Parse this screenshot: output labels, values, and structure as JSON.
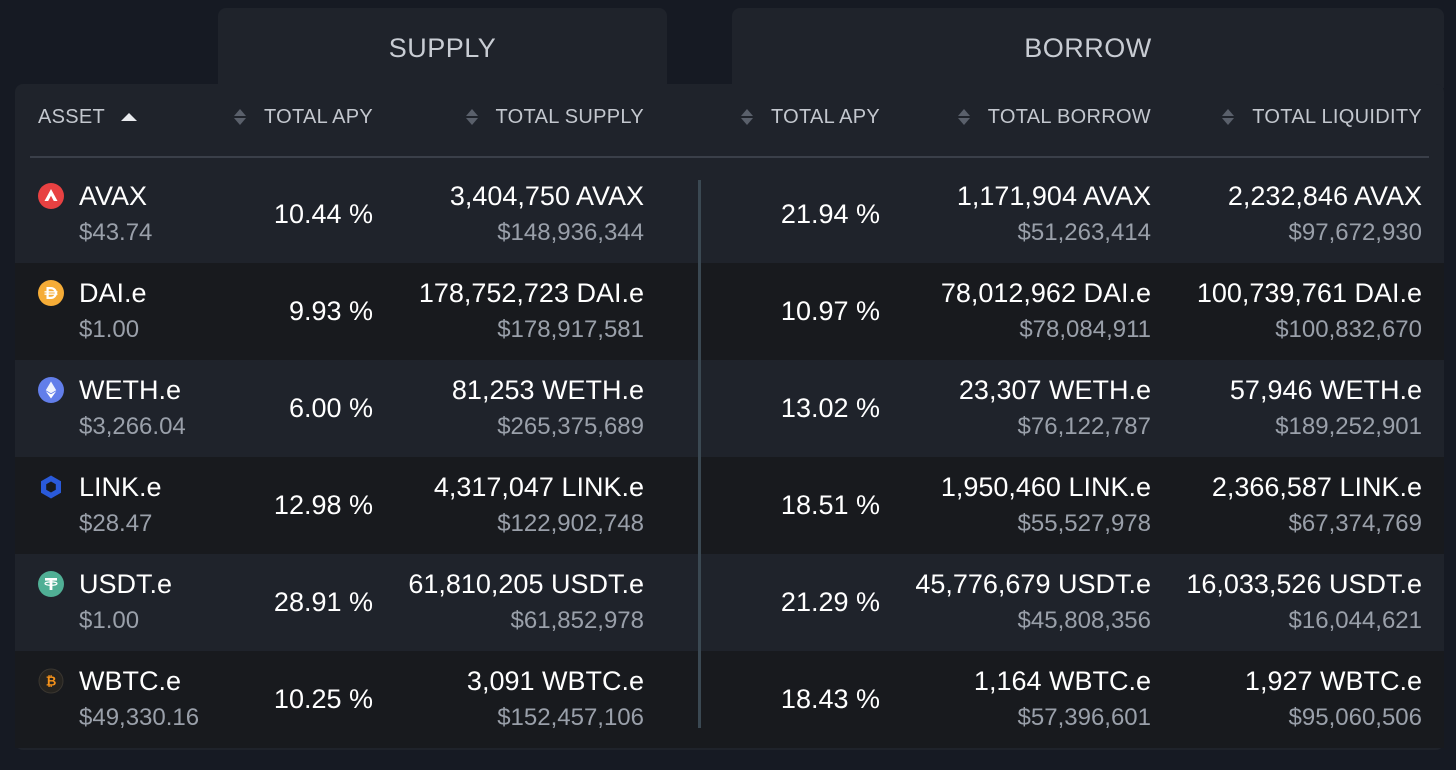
{
  "tabs": {
    "supply": "SUPPLY",
    "borrow": "BORROW"
  },
  "header": {
    "asset": "ASSET",
    "supply_apy": "TOTAL APY",
    "total_supply": "TOTAL SUPPLY",
    "borrow_apy": "TOTAL APY",
    "total_borrow": "TOTAL BORROW",
    "total_liquidity": "TOTAL LIQUIDITY"
  },
  "rows": [
    {
      "icon": "avax-icon",
      "name": "AVAX",
      "price": "$43.74",
      "supply_apy": "10.44 %",
      "supply_amount": "3,404,750 AVAX",
      "supply_usd": "$148,936,344",
      "borrow_apy": "21.94 %",
      "borrow_amount": "1,171,904 AVAX",
      "borrow_usd": "$51,263,414",
      "liquidity_amount": "2,232,846 AVAX",
      "liquidity_usd": "$97,672,930"
    },
    {
      "icon": "dai-icon",
      "name": "DAI.e",
      "price": "$1.00",
      "supply_apy": "9.93 %",
      "supply_amount": "178,752,723 DAI.e",
      "supply_usd": "$178,917,581",
      "borrow_apy": "10.97 %",
      "borrow_amount": "78,012,962 DAI.e",
      "borrow_usd": "$78,084,911",
      "liquidity_amount": "100,739,761 DAI.e",
      "liquidity_usd": "$100,832,670"
    },
    {
      "icon": "eth-icon",
      "name": "WETH.e",
      "price": "$3,266.04",
      "supply_apy": "6.00 %",
      "supply_amount": "81,253 WETH.e",
      "supply_usd": "$265,375,689",
      "borrow_apy": "13.02 %",
      "borrow_amount": "23,307 WETH.e",
      "borrow_usd": "$76,122,787",
      "liquidity_amount": "57,946 WETH.e",
      "liquidity_usd": "$189,252,901"
    },
    {
      "icon": "link-icon",
      "name": "LINK.e",
      "price": "$28.47",
      "supply_apy": "12.98 %",
      "supply_amount": "4,317,047 LINK.e",
      "supply_usd": "$122,902,748",
      "borrow_apy": "18.51 %",
      "borrow_amount": "1,950,460 LINK.e",
      "borrow_usd": "$55,527,978",
      "liquidity_amount": "2,366,587 LINK.e",
      "liquidity_usd": "$67,374,769"
    },
    {
      "icon": "usdt-icon",
      "name": "USDT.e",
      "price": "$1.00",
      "supply_apy": "28.91 %",
      "supply_amount": "61,810,205 USDT.e",
      "supply_usd": "$61,852,978",
      "borrow_apy": "21.29 %",
      "borrow_amount": "45,776,679 USDT.e",
      "borrow_usd": "$45,808,356",
      "liquidity_amount": "16,033,526 USDT.e",
      "liquidity_usd": "$16,044,621"
    },
    {
      "icon": "btc-icon",
      "name": "WBTC.e",
      "price": "$49,330.16",
      "supply_apy": "10.25 %",
      "supply_amount": "3,091 WBTC.e",
      "supply_usd": "$152,457,106",
      "borrow_apy": "18.43 %",
      "borrow_amount": "1,164 WBTC.e",
      "borrow_usd": "$57,396,601",
      "liquidity_amount": "1,927 WBTC.e",
      "liquidity_usd": "$95,060,506"
    }
  ],
  "colors": {
    "avax": "#e84142",
    "dai": "#f5ac37",
    "eth": "#627eea",
    "link": "#2a5ada",
    "usdt": "#50af95",
    "btc": "#f7931a"
  }
}
